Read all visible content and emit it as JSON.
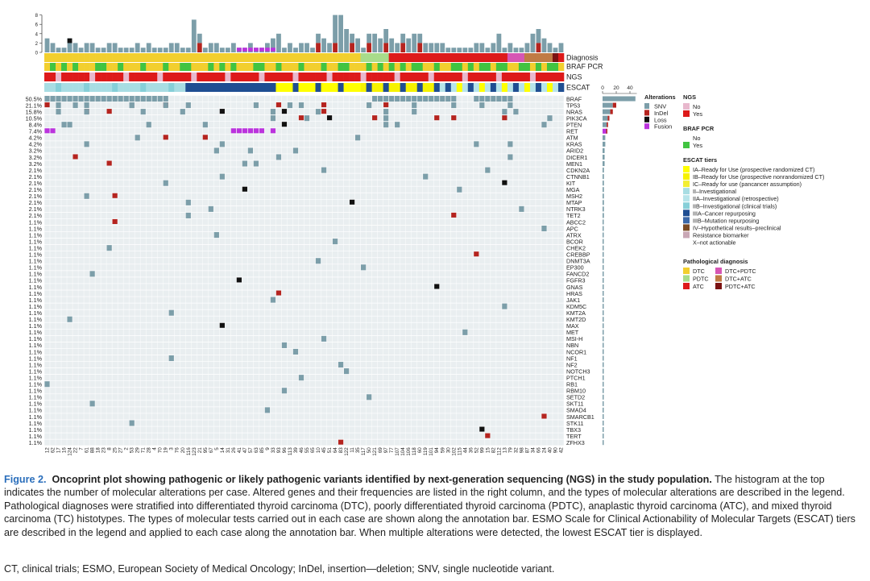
{
  "figure": {
    "histogram_ticks": [
      "8",
      "6",
      "4",
      "2",
      "0"
    ],
    "track_labels": [
      "Diagnosis",
      "BRAF PCR",
      "NGS",
      "ESCAT"
    ],
    "genes": [
      {
        "name": "BRAF",
        "freq": "50.5%",
        "count": 48
      },
      {
        "name": "TP53",
        "freq": "21.1%",
        "count": 20
      },
      {
        "name": "NRAS",
        "freq": "15.8%",
        "count": 15
      },
      {
        "name": "PIK3CA",
        "freq": "10.5%",
        "count": 10
      },
      {
        "name": "PTEN",
        "freq": "8.4%",
        "count": 8
      },
      {
        "name": "RET",
        "freq": "7.4%",
        "count": 7
      },
      {
        "name": "ATM",
        "freq": "4.2%",
        "count": 4
      },
      {
        "name": "KRAS",
        "freq": "4.2%",
        "count": 4
      },
      {
        "name": "ARID2",
        "freq": "3.2%",
        "count": 3
      },
      {
        "name": "DICER1",
        "freq": "3.2%",
        "count": 3
      },
      {
        "name": "MEN1",
        "freq": "3.2%",
        "count": 3
      },
      {
        "name": "CDKN2A",
        "freq": "2.1%",
        "count": 2
      },
      {
        "name": "CTNNB1",
        "freq": "2.1%",
        "count": 2
      },
      {
        "name": "KIT",
        "freq": "2.1%",
        "count": 2
      },
      {
        "name": "MGA",
        "freq": "2.1%",
        "count": 2
      },
      {
        "name": "MSH2",
        "freq": "2.1%",
        "count": 2
      },
      {
        "name": "MTAP",
        "freq": "2.1%",
        "count": 2
      },
      {
        "name": "NTRK3",
        "freq": "2.1%",
        "count": 2
      },
      {
        "name": "TET2",
        "freq": "2.1%",
        "count": 2
      },
      {
        "name": "ABCC2",
        "freq": "1.1%",
        "count": 1
      },
      {
        "name": "APC",
        "freq": "1.1%",
        "count": 1
      },
      {
        "name": "ATRX",
        "freq": "1.1%",
        "count": 1
      },
      {
        "name": "BCOR",
        "freq": "1.1%",
        "count": 1
      },
      {
        "name": "CHEK2",
        "freq": "1.1%",
        "count": 1
      },
      {
        "name": "CREBBP",
        "freq": "1.1%",
        "count": 1
      },
      {
        "name": "DNMT3A",
        "freq": "1.1%",
        "count": 1
      },
      {
        "name": "EP300",
        "freq": "1.1%",
        "count": 1
      },
      {
        "name": "FANCD2",
        "freq": "1.1%",
        "count": 1
      },
      {
        "name": "FGFR3",
        "freq": "1.1%",
        "count": 1
      },
      {
        "name": "GNAS",
        "freq": "1.1%",
        "count": 1
      },
      {
        "name": "HRAS",
        "freq": "1.1%",
        "count": 1
      },
      {
        "name": "JAK1",
        "freq": "1.1%",
        "count": 1
      },
      {
        "name": "KDM5C",
        "freq": "1.1%",
        "count": 1
      },
      {
        "name": "KMT2A",
        "freq": "1.1%",
        "count": 1
      },
      {
        "name": "KMT2D",
        "freq": "1.1%",
        "count": 1
      },
      {
        "name": "MAX",
        "freq": "1.1%",
        "count": 1
      },
      {
        "name": "MET",
        "freq": "1.1%",
        "count": 1
      },
      {
        "name": "MSI-H",
        "freq": "1.1%",
        "count": 1
      },
      {
        "name": "NBN",
        "freq": "1.1%",
        "count": 1
      },
      {
        "name": "NCOR1",
        "freq": "1.1%",
        "count": 1
      },
      {
        "name": "NF1",
        "freq": "1.1%",
        "count": 1
      },
      {
        "name": "NF2",
        "freq": "1.1%",
        "count": 1
      },
      {
        "name": "NOTCH3",
        "freq": "1.1%",
        "count": 1
      },
      {
        "name": "PTCH1",
        "freq": "1.1%",
        "count": 1
      },
      {
        "name": "RB1",
        "freq": "1.1%",
        "count": 1
      },
      {
        "name": "RBM10",
        "freq": "1.1%",
        "count": 1
      },
      {
        "name": "SETD2",
        "freq": "1.1%",
        "count": 1
      },
      {
        "name": "SKT11",
        "freq": "1.1%",
        "count": 1
      },
      {
        "name": "SMAD4",
        "freq": "1.1%",
        "count": 1
      },
      {
        "name": "SMARCB1",
        "freq": "1.1%",
        "count": 1
      },
      {
        "name": "STK11",
        "freq": "1.1%",
        "count": 1
      },
      {
        "name": "TBX3",
        "freq": "1.1%",
        "count": 1
      },
      {
        "name": "TERT",
        "freq": "1.1%",
        "count": 1
      },
      {
        "name": "ZFHX3",
        "freq": "1.1%",
        "count": 1
      }
    ],
    "freq_bar_ticks": [
      "0",
      "20",
      "40"
    ],
    "case_ids": [
      "12",
      "62",
      "17",
      "16",
      "124",
      "22",
      "7",
      "61",
      "88",
      "18",
      "23",
      "8",
      "25",
      "27",
      "2",
      "53",
      "29",
      "71",
      "28",
      "4",
      "70",
      "19",
      "3",
      "76",
      "20",
      "116",
      "123",
      "21",
      "95",
      "67",
      "5",
      "14",
      "31",
      "26",
      "41",
      "47",
      "57",
      "63",
      "85",
      "9",
      "33",
      "93",
      "96",
      "113",
      "39",
      "46",
      "55",
      "65",
      "10",
      "45",
      "51",
      "64",
      "83",
      "122",
      "11",
      "35",
      "117",
      "50",
      "121",
      "69",
      "97",
      "77",
      "107",
      "104",
      "106",
      "118",
      "60",
      "119",
      "101",
      "94",
      "59",
      "30",
      "102",
      "115",
      "44",
      "36",
      "52",
      "99",
      "15",
      "82",
      "112",
      "13",
      "79",
      "32",
      "98",
      "87",
      "34",
      "66",
      "24",
      "40",
      "90",
      "42"
    ],
    "legend": {
      "alterations_title": "Alterations",
      "alterations": [
        {
          "label": "SNV",
          "color": "#7c9ea9"
        },
        {
          "label": "InDel",
          "color": "#b5241f"
        },
        {
          "label": "Loss",
          "color": "#111111"
        },
        {
          "label": "Fusion",
          "color": "#bb33dd"
        }
      ],
      "ngs_title": "NGS",
      "ngs": [
        {
          "label": "No",
          "color": "#e8b8cd"
        },
        {
          "label": "Yes",
          "color": "#dd1a1a"
        }
      ],
      "braf_title": "BRAF PCR",
      "braf": [
        {
          "label": "No",
          "color": "#ffffff"
        },
        {
          "label": "Yes",
          "color": "#41c441"
        }
      ],
      "escat_title": "ESCAT tiers",
      "escat": [
        {
          "label": "IA–Ready for Use (prospective randomized CT)",
          "color": "#ffff00"
        },
        {
          "label": "IB–Ready for Use (prospective nonrandomized CT)",
          "color": "#f6f200"
        },
        {
          "label": "IC–Ready for use (pancancer assumption)",
          "color": "#f2ee33"
        },
        {
          "label": "II–Investigational",
          "color": "#a8dde3"
        },
        {
          "label": "IIA–Investigational (retrospective)",
          "color": "#b7e4ea"
        },
        {
          "label": "IIB–Investigational (clinical trials)",
          "color": "#86cfd8"
        },
        {
          "label": "IIIA–Cancer repurposing",
          "color": "#1f4e92"
        },
        {
          "label": "IIIB–Mutation repurposing",
          "color": "#3c68a8"
        },
        {
          "label": "IV–Hypothetical results–preclinical",
          "color": "#7a4a24"
        },
        {
          "label": "Resistance biomarker",
          "color": "#c9a7b5"
        },
        {
          "label": "X–not actionable",
          "color": "#ffffff"
        }
      ],
      "path_title": "Pathological diagnosis",
      "path": [
        {
          "label": "DTC",
          "color": "#f2cf2e"
        },
        {
          "label": "DTC+PDTC",
          "color": "#d656b4"
        },
        {
          "label": "PDTC",
          "color": "#a8dc8b"
        },
        {
          "label": "DTC+ATC",
          "color": "#c07b45"
        },
        {
          "label": "ATC",
          "color": "#dd1a1a"
        },
        {
          "label": "PDTC+ATC",
          "color": "#7b1212"
        }
      ]
    }
  },
  "caption": {
    "label": "Figure 2.",
    "title": "Oncoprint plot showing pathogenic or likely pathogenic variants identified by next-generation sequencing (NGS) in the study population.",
    "body": "The histogram at the top indicates the number of molecular alterations per case. Altered genes and their frequencies are listed in the right column, and the types of molecular alterations are described in the legend. Pathological diagnoses were stratified into differentiated thyroid carcinoma (DTC), poorly differentiated thyroid carcinoma (PDTC), anaplastic thyroid carcinoma (ATC), and mixed thyroid carcinoma (TC) histotypes. The types of molecular tests carried out in each case are shown along the annotation bar. ESMO Scale for Clinical Actionability of Molecular Targets (ESCAT) tiers are described in the legend and applied to each case along the annotation bar. When multiple alterations were detected, the lowest ESCAT tier is displayed.",
    "footnote": "CT, clinical trials; ESMO, European Society of Medical Oncology; InDel, insertion—deletion; SNV, single nucleotide variant."
  }
}
